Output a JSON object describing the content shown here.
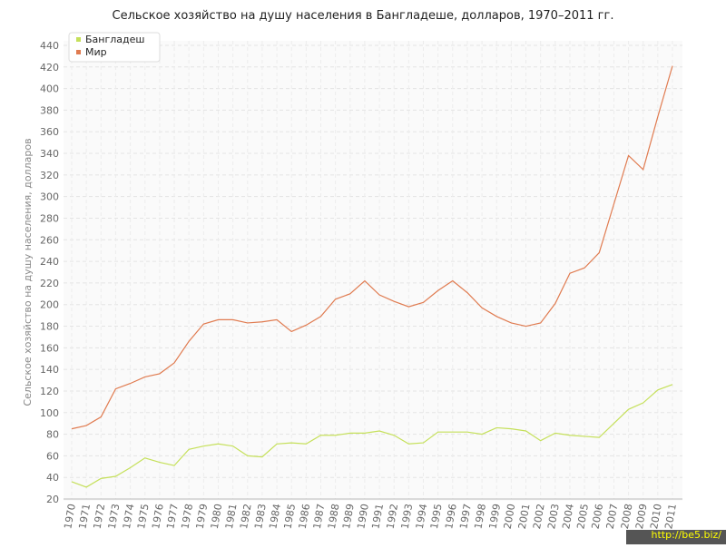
{
  "chart_data": {
    "type": "line",
    "title": "Сельское хозяйство на душу населения в Бангладеше, долларов, 1970–2011 гг.",
    "y_label": "Сельское хозяйство на душу населения, долларов",
    "categories": [
      "1970",
      "1971",
      "1972",
      "1973",
      "1974",
      "1975",
      "1976",
      "1977",
      "1978",
      "1979",
      "1980",
      "1981",
      "1982",
      "1983",
      "1984",
      "1985",
      "1986",
      "1987",
      "1988",
      "1989",
      "1990",
      "1991",
      "1992",
      "1993",
      "1994",
      "1995",
      "1996",
      "1997",
      "1998",
      "1999",
      "2000",
      "2001",
      "2002",
      "2003",
      "2004",
      "2005",
      "2006",
      "2007",
      "2008",
      "2009",
      "2010",
      "2011"
    ],
    "series": [
      {
        "name": "Бангладеш",
        "color": "#c5e05a",
        "values": [
          36,
          31,
          39,
          41,
          49,
          58,
          54,
          51,
          66,
          69,
          71,
          69,
          60,
          59,
          71,
          72,
          71,
          79,
          79,
          81,
          81,
          83,
          79,
          71,
          72,
          82,
          82,
          82,
          80,
          86,
          85,
          83,
          74,
          81,
          79,
          78,
          77,
          90,
          103,
          109,
          121,
          126
        ]
      },
      {
        "name": "Мир",
        "color": "#e07b50",
        "values": [
          85,
          88,
          96,
          122,
          127,
          133,
          136,
          146,
          166,
          182,
          186,
          186,
          183,
          184,
          186,
          175,
          181,
          189,
          205,
          210,
          222,
          209,
          203,
          198,
          202,
          213,
          222,
          211,
          197,
          189,
          183,
          180,
          183,
          201,
          229,
          234,
          248,
          293,
          338,
          325,
          374,
          421
        ]
      }
    ],
    "ylim": [
      20,
      440
    ],
    "yticks": [
      20,
      40,
      60,
      80,
      100,
      120,
      140,
      160,
      180,
      200,
      220,
      240,
      260,
      280,
      300,
      320,
      340,
      360,
      380,
      400,
      420,
      440
    ],
    "grid": true,
    "legend": "top-left",
    "watermark": "http://be5.biz/"
  }
}
